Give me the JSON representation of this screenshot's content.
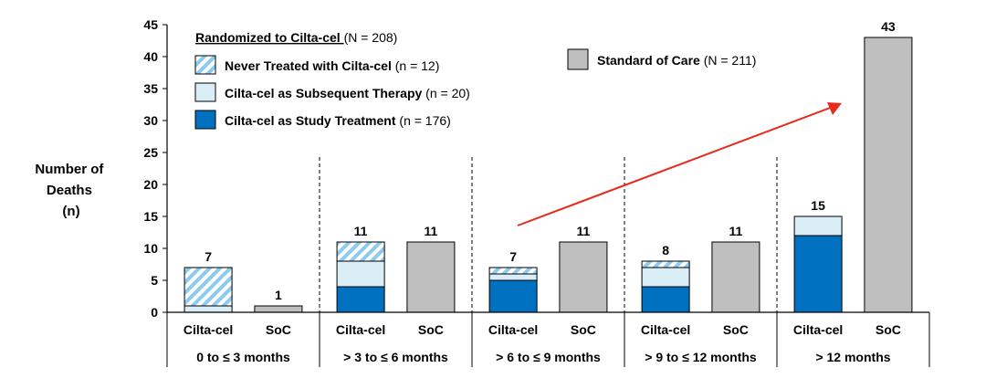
{
  "colors": {
    "study": "#0070C0",
    "subsequent": "#DAEEF8",
    "never_stripe": "#8CCBEE",
    "soc": "#BFBFBF",
    "arrow": "#E8291C"
  },
  "chart_data": {
    "type": "bar",
    "ylabel": [
      "Number of",
      "Deaths",
      "(n)"
    ],
    "ylim": [
      0,
      45
    ],
    "yticks": [
      0,
      5,
      10,
      15,
      20,
      25,
      30,
      35,
      40,
      45
    ],
    "legend": {
      "cilta_title": "Randomized to Cilta-cel ",
      "cilta_title_n": "(N = 208)",
      "entries": [
        {
          "key": "never",
          "label": "Never Treated with Cilta-cel",
          "n": " (n = 12)"
        },
        {
          "key": "subsequent",
          "label": "Cilta-cel as Subsequent Therapy",
          "n": " (n = 20)"
        },
        {
          "key": "study",
          "label": "Cilta-cel as Study Treatment",
          "n": " (n = 176)"
        }
      ],
      "soc": {
        "label": "Standard of Care",
        "n": " (N = 211)"
      }
    },
    "groups": [
      {
        "label": "0 to ≤ 3 months",
        "cilta": {
          "category": "Cilta-cel",
          "study": 0,
          "subsequent": 1,
          "never": 6,
          "total": 7
        },
        "soc": {
          "category": "SoC",
          "value": 1
        }
      },
      {
        "label": "> 3 to ≤ 6 months",
        "cilta": {
          "category": "Cilta-cel",
          "study": 4,
          "subsequent": 4,
          "never": 3,
          "total": 11
        },
        "soc": {
          "category": "SoC",
          "value": 11
        }
      },
      {
        "label": "> 6 to ≤ 9 months",
        "cilta": {
          "category": "Cilta-cel",
          "study": 5,
          "subsequent": 1,
          "never": 1,
          "total": 7
        },
        "soc": {
          "category": "SoC",
          "value": 11
        }
      },
      {
        "label": "> 9 to ≤ 12 months",
        "cilta": {
          "category": "Cilta-cel",
          "study": 4,
          "subsequent": 3,
          "never": 1,
          "total": 8
        },
        "soc": {
          "category": "SoC",
          "value": 11
        }
      },
      {
        "label": "> 12 months",
        "cilta": {
          "category": "Cilta-cel",
          "study": 12,
          "subsequent": 3,
          "never": 0,
          "total": 15
        },
        "soc": {
          "category": "SoC",
          "value": 43
        }
      }
    ],
    "annotation": {
      "type": "trend-arrow",
      "from_group": "> 6 to ≤ 9 months",
      "to_group": "> 12 months",
      "points_to": "SoC"
    }
  }
}
